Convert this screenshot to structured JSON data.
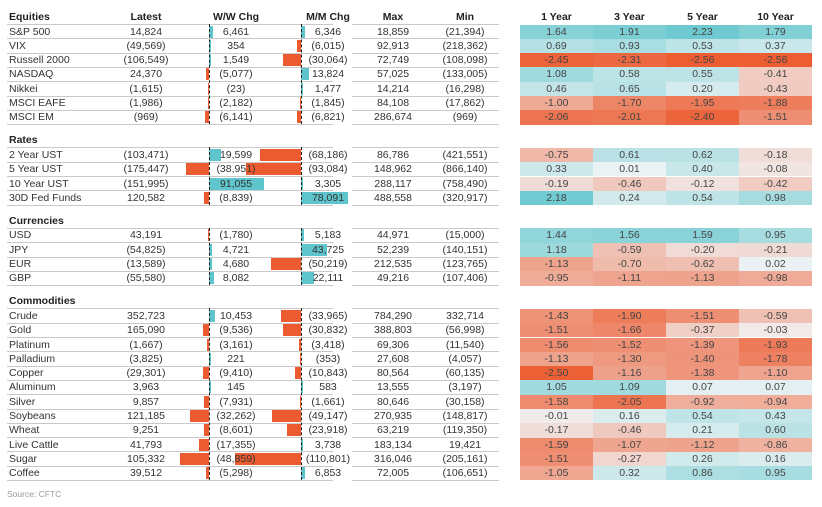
{
  "source": "Source: CFTC",
  "colors": {
    "positive": "#5fc5cc",
    "negative": "#ec5b30",
    "neutral": "#eeeeee"
  },
  "chart_data": {
    "type": "table",
    "columns": [
      "Latest",
      "W/W Chg",
      "M/M Chg",
      "Max",
      "Min",
      "1 Year",
      "3 Year",
      "5 Year",
      "10 Year"
    ],
    "z_columns": [
      "1 Year",
      "3 Year",
      "5 Year",
      "10 Year"
    ],
    "sections": [
      {
        "title": "Equities",
        "rows": [
          {
            "name": "S&P 500",
            "latest": "14,824",
            "ww": 6461,
            "ww_label": "6,461",
            "mm": 6346,
            "mm_label": "6,346",
            "max": "18,859",
            "min": "(21,394)",
            "z": [
              1.64,
              1.91,
              2.23,
              1.79
            ]
          },
          {
            "name": "VIX",
            "latest": "(49,569)",
            "ww": 354,
            "ww_label": "354",
            "mm": -6015,
            "mm_label": "(6,015)",
            "max": "92,913",
            "min": "(218,362)",
            "z": [
              0.69,
              0.93,
              0.53,
              0.37
            ]
          },
          {
            "name": "Russell 2000",
            "latest": "(106,549)",
            "ww": 1549,
            "ww_label": "1,549",
            "mm": -30064,
            "mm_label": "(30,064)",
            "max": "72,749",
            "min": "(108,098)",
            "z": [
              -2.45,
              -2.31,
              -2.56,
              -2.56
            ]
          },
          {
            "name": "NASDAQ",
            "latest": "24,370",
            "ww": -5077,
            "ww_label": "(5,077)",
            "mm": 13824,
            "mm_label": "13,824",
            "max": "57,025",
            "min": "(133,005)",
            "z": [
              1.08,
              0.58,
              0.55,
              -0.41
            ]
          },
          {
            "name": "Nikkei",
            "latest": "(1,615)",
            "ww": -23,
            "ww_label": "(23)",
            "mm": 1477,
            "mm_label": "1,477",
            "max": "14,214",
            "min": "(16,298)",
            "z": [
              0.46,
              0.65,
              0.2,
              -0.43
            ]
          },
          {
            "name": "MSCI EAFE",
            "latest": "(1,986)",
            "ww": -2182,
            "ww_label": "(2,182)",
            "mm": -1845,
            "mm_label": "(1,845)",
            "max": "84,108",
            "min": "(17,862)",
            "z": [
              -1.0,
              -1.7,
              -1.95,
              -1.88
            ]
          },
          {
            "name": "MSCI EM",
            "latest": "(969)",
            "ww": -6141,
            "ww_label": "(6,141)",
            "mm": -6821,
            "mm_label": "(6,821)",
            "max": "286,674",
            "min": "(969)",
            "z": [
              -2.06,
              -2.01,
              -2.4,
              -1.51
            ]
          }
        ]
      },
      {
        "title": "Rates",
        "rows": [
          {
            "name": "2 Year UST",
            "latest": "(103,471)",
            "ww": 19599,
            "ww_label": "19,599",
            "mm": -68186,
            "mm_label": "(68,186)",
            "max": "86,786",
            "min": "(421,551)",
            "z": [
              -0.75,
              0.61,
              0.62,
              -0.18
            ]
          },
          {
            "name": "5 Year UST",
            "latest": "(175,447)",
            "ww": -38951,
            "ww_label": "(38,951)",
            "mm": -93084,
            "mm_label": "(93,084)",
            "max": "148,962",
            "min": "(866,140)",
            "z": [
              0.33,
              0.01,
              0.4,
              -0.08
            ]
          },
          {
            "name": "10 Year UST",
            "latest": "(151,995)",
            "ww": 91055,
            "ww_label": "91,055",
            "mm": 3305,
            "mm_label": "3,305",
            "max": "288,117",
            "min": "(758,490)",
            "z": [
              -0.19,
              -0.46,
              -0.12,
              -0.42
            ]
          },
          {
            "name": "30D Fed Funds",
            "latest": "120,582",
            "ww": -8839,
            "ww_label": "(8,839)",
            "mm": 78091,
            "mm_label": "78,091",
            "max": "488,558",
            "min": "(320,917)",
            "z": [
              2.18,
              0.24,
              0.54,
              0.98
            ]
          }
        ]
      },
      {
        "title": "Currencies",
        "rows": [
          {
            "name": "USD",
            "latest": "43,191",
            "ww": -1780,
            "ww_label": "(1,780)",
            "mm": 5183,
            "mm_label": "5,183",
            "max": "44,971",
            "min": "(15,000)",
            "z": [
              1.44,
              1.56,
              1.59,
              0.95
            ]
          },
          {
            "name": "JPY",
            "latest": "(54,825)",
            "ww": 4721,
            "ww_label": "4,721",
            "mm": 43725,
            "mm_label": "43,725",
            "max": "52,239",
            "min": "(140,151)",
            "z": [
              1.18,
              -0.59,
              -0.2,
              -0.21
            ]
          },
          {
            "name": "EUR",
            "latest": "(13,589)",
            "ww": 4680,
            "ww_label": "4,680",
            "mm": -50219,
            "mm_label": "(50,219)",
            "max": "212,535",
            "min": "(123,765)",
            "z": [
              -1.13,
              -0.7,
              -0.62,
              0.02
            ]
          },
          {
            "name": "GBP",
            "latest": "(55,580)",
            "ww": 8082,
            "ww_label": "8,082",
            "mm": 22111,
            "mm_label": "22,111",
            "max": "49,216",
            "min": "(107,406)",
            "z": [
              -0.95,
              -1.11,
              -1.13,
              -0.98
            ]
          }
        ]
      },
      {
        "title": "Commodities",
        "rows": [
          {
            "name": "Crude",
            "latest": "352,723",
            "ww": 10453,
            "ww_label": "10,453",
            "mm": -33965,
            "mm_label": "(33,965)",
            "max": "784,290",
            "min": "332,714",
            "z": [
              -1.43,
              -1.9,
              -1.51,
              -0.59
            ]
          },
          {
            "name": "Gold",
            "latest": "165,090",
            "ww": -9536,
            "ww_label": "(9,536)",
            "mm": -30832,
            "mm_label": "(30,832)",
            "max": "388,803",
            "min": "(56,998)",
            "z": [
              -1.51,
              -1.66,
              -0.37,
              -0.03
            ]
          },
          {
            "name": "Platinum",
            "latest": "(1,667)",
            "ww": -3161,
            "ww_label": "(3,161)",
            "mm": -3418,
            "mm_label": "(3,418)",
            "max": "69,306",
            "min": "(11,540)",
            "z": [
              -1.56,
              -1.52,
              -1.39,
              -1.93
            ]
          },
          {
            "name": "Palladium",
            "latest": "(3,825)",
            "ww": 221,
            "ww_label": "221",
            "mm": -353,
            "mm_label": "(353)",
            "max": "27,608",
            "min": "(4,057)",
            "z": [
              -1.13,
              -1.3,
              -1.4,
              -1.78
            ]
          },
          {
            "name": "Copper",
            "latest": "(29,301)",
            "ww": -9410,
            "ww_label": "(9,410)",
            "mm": -10843,
            "mm_label": "(10,843)",
            "max": "80,564",
            "min": "(60,135)",
            "z": [
              -2.5,
              -1.16,
              -1.38,
              -1.1
            ]
          },
          {
            "name": "Aluminum",
            "latest": "3,963",
            "ww": 145,
            "ww_label": "145",
            "mm": 583,
            "mm_label": "583",
            "max": "13,555",
            "min": "(3,197)",
            "z": [
              1.05,
              1.09,
              0.07,
              0.07
            ]
          },
          {
            "name": "Silver",
            "latest": "9,857",
            "ww": -7931,
            "ww_label": "(7,931)",
            "mm": -1661,
            "mm_label": "(1,661)",
            "max": "80,646",
            "min": "(30,158)",
            "z": [
              -1.58,
              -2.05,
              -0.92,
              -0.94
            ]
          },
          {
            "name": "Soybeans",
            "latest": "121,185",
            "ww": -32262,
            "ww_label": "(32,262)",
            "mm": -49147,
            "mm_label": "(49,147)",
            "max": "270,935",
            "min": "(148,817)",
            "z": [
              -0.01,
              0.16,
              0.54,
              0.43
            ]
          },
          {
            "name": "Wheat",
            "latest": "9,251",
            "ww": -8601,
            "ww_label": "(8,601)",
            "mm": -23918,
            "mm_label": "(23,918)",
            "max": "63,219",
            "min": "(119,350)",
            "z": [
              -0.17,
              -0.46,
              0.21,
              0.6
            ]
          },
          {
            "name": "Live Cattle",
            "latest": "41,793",
            "ww": -17355,
            "ww_label": "(17,355)",
            "mm": 3738,
            "mm_label": "3,738",
            "max": "183,134",
            "min": "19,421",
            "z": [
              -1.59,
              -1.07,
              -1.12,
              -0.86
            ]
          },
          {
            "name": "Sugar",
            "latest": "105,332",
            "ww": -48859,
            "ww_label": "(48,859)",
            "mm": -110801,
            "mm_label": "(110,801)",
            "max": "316,046",
            "min": "(205,161)",
            "z": [
              -1.51,
              -0.27,
              0.26,
              0.16
            ]
          },
          {
            "name": "Coffee",
            "latest": "39,512",
            "ww": -5298,
            "ww_label": "(5,298)",
            "mm": 6853,
            "mm_label": "6,853",
            "max": "72,005",
            "min": "(106,651)",
            "z": [
              -1.05,
              0.32,
              0.86,
              0.95
            ]
          }
        ]
      }
    ]
  }
}
